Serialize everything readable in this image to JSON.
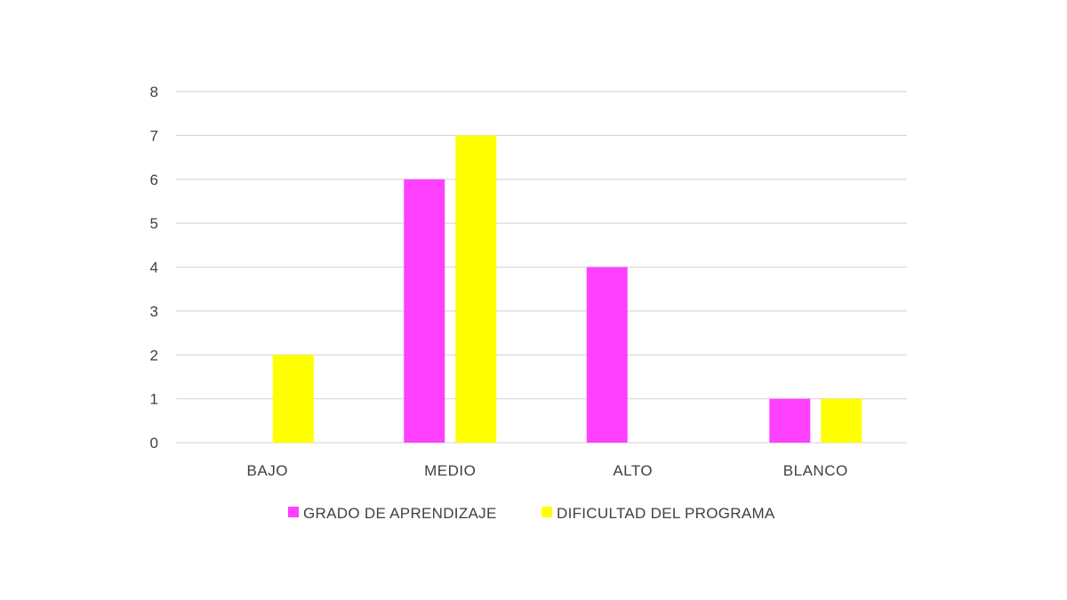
{
  "chart_data": {
    "type": "bar",
    "categories": [
      "BAJO",
      "MEDIO",
      "ALTO",
      "BLANCO"
    ],
    "series": [
      {
        "name": "GRADO DE APRENDIZAJE",
        "values": [
          0,
          6,
          4,
          1
        ],
        "color": "#ff40ff"
      },
      {
        "name": "DIFICULTAD DEL PROGRAMA",
        "values": [
          2,
          7,
          0,
          1
        ],
        "color": "#ffff00"
      }
    ],
    "yticks": [
      "0",
      "1",
      "2",
      "3",
      "4",
      "5",
      "6",
      "7",
      "8"
    ],
    "ylim": [
      0,
      8
    ],
    "grid": true,
    "legend_position": "bottom"
  }
}
